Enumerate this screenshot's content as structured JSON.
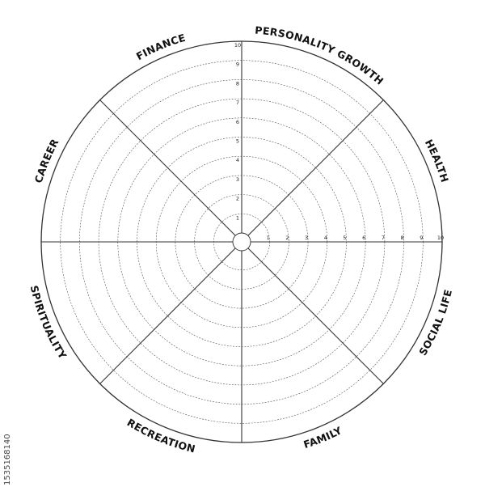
{
  "wheel": {
    "segments": [
      "PERSONALITY GROWTH",
      "HEALTH",
      "SOCIAL LIFE",
      "FAMILY",
      "RECREATION",
      "SPIRITUALITY",
      "CAREER",
      "FINANCE"
    ],
    "scale": {
      "min": 1,
      "max": 10,
      "ticks": [
        "1",
        "2",
        "3",
        "4",
        "5",
        "6",
        "7",
        "8",
        "9",
        "10"
      ]
    },
    "ring_style": "dashed",
    "line_color": "#333333"
  },
  "stock_id": "1535168140"
}
